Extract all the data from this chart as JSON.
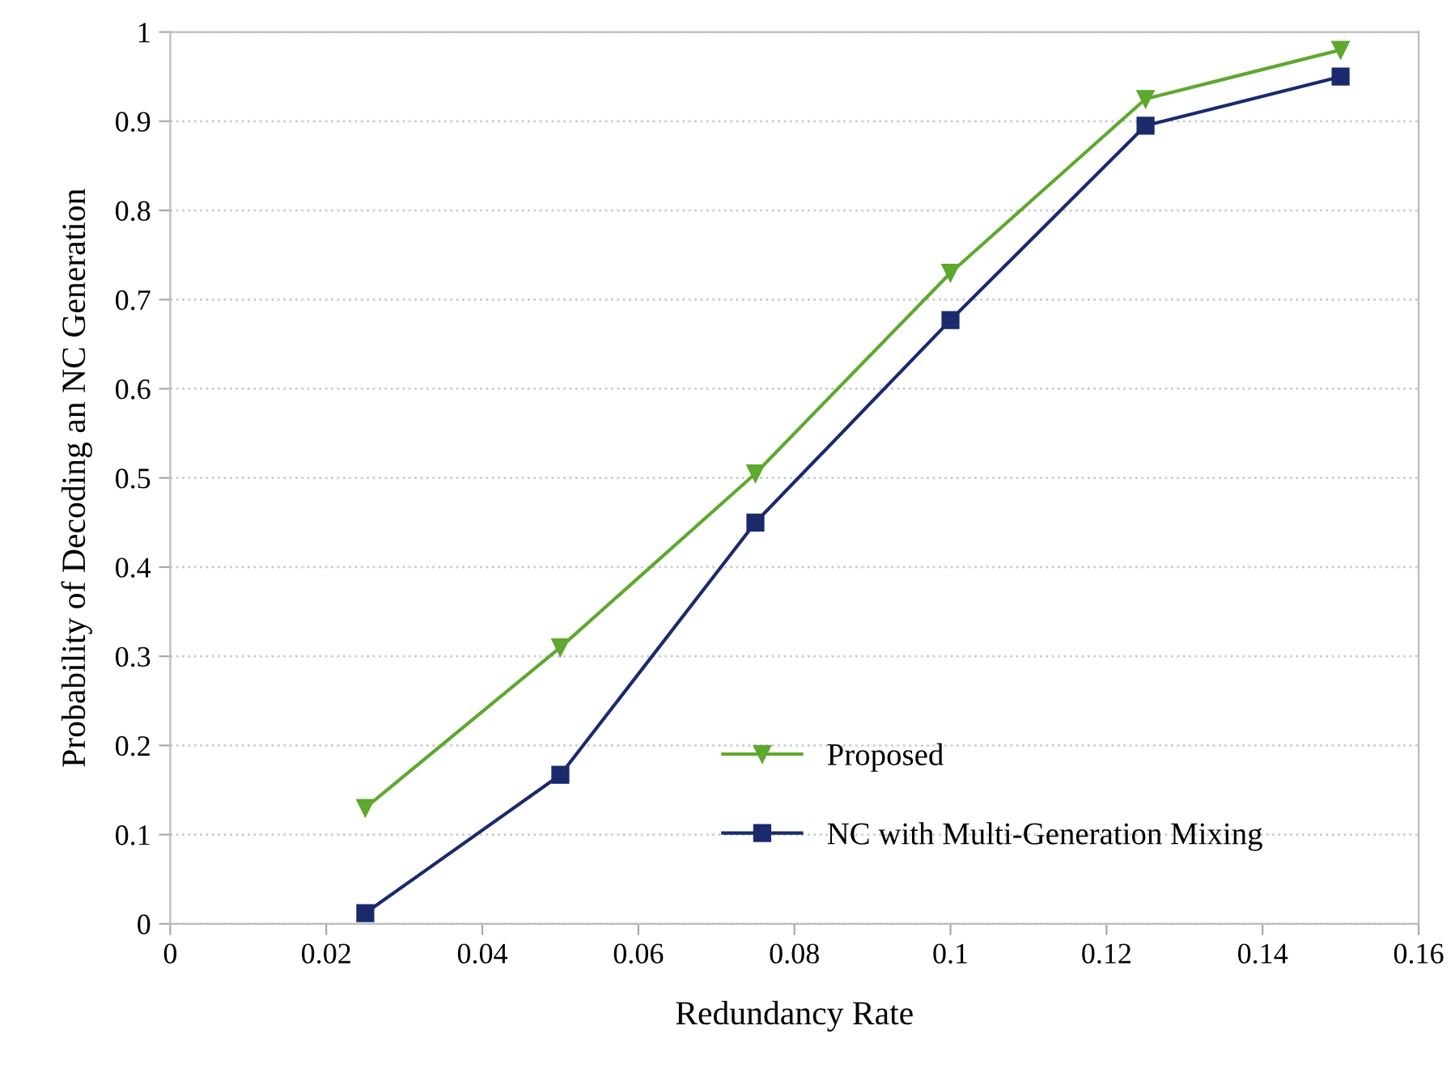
{
  "chart_data": {
    "type": "line",
    "xlabel": "Redundancy Rate",
    "ylabel": "Probability of Decoding an NC Generation",
    "x": [
      0.025,
      0.05,
      0.075,
      0.1,
      0.125,
      0.15
    ],
    "series": [
      {
        "name": "Proposed",
        "color": "#5ea82e",
        "marker": "triangle",
        "values": [
          0.13,
          0.31,
          0.505,
          0.73,
          0.925,
          0.98
        ]
      },
      {
        "name": "NC with Multi-Generation Mixing",
        "color": "#1a2a6c",
        "marker": "square",
        "values": [
          0.012,
          0.167,
          0.45,
          0.677,
          0.895,
          0.95
        ]
      }
    ],
    "xlim": [
      0,
      0.16
    ],
    "xticks": [
      0,
      0.02,
      0.04,
      0.06,
      0.08,
      0.1,
      0.12,
      0.14,
      0.16
    ],
    "ylim": [
      0,
      1
    ],
    "yticks": [
      0,
      0.1,
      0.2,
      0.3,
      0.4,
      0.5,
      0.6,
      0.7,
      0.8,
      0.9,
      1
    ],
    "grid": "y",
    "legend": "bottom right",
    "line_style": "solid"
  }
}
